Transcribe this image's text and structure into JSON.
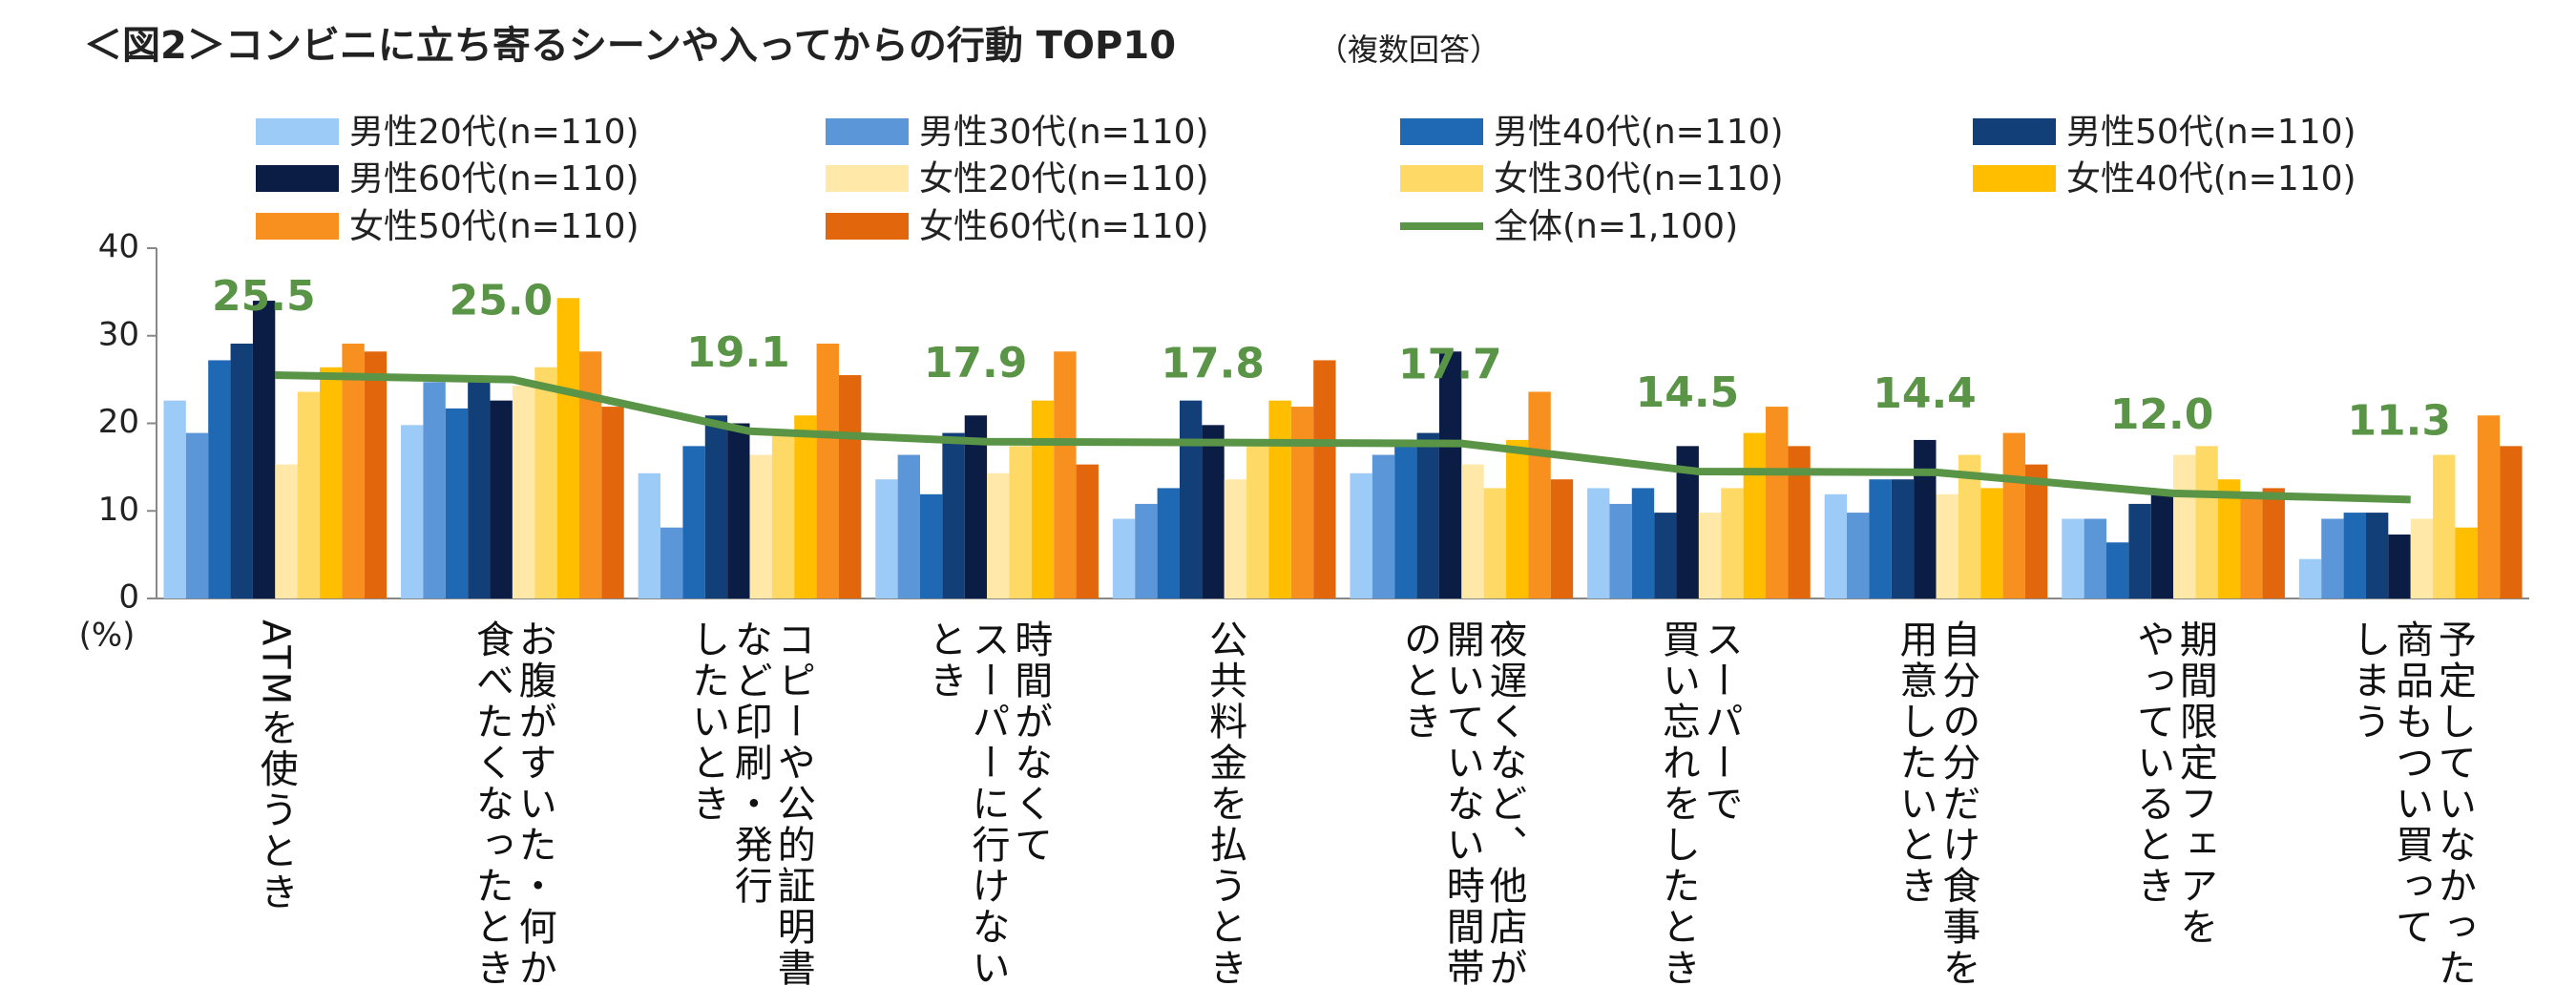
{
  "chart_data": {
    "type": "bar",
    "title": "＜図2＞コンビニに立ち寄るシーンや入ってからの行動 TOP10",
    "subtitle": "（複数回答）",
    "y_label": "(%)",
    "categories": [
      "ATMを使うとき",
      "お腹がすいた・何か\n食べたくなったとき",
      "コピーや公的証明書\nなど印刷・発行\nしたいとき",
      "時間がなくて\nスーパーに行けない\nとき",
      "公共料金を払うとき",
      "夜遅くなど、他店が\n開いていない時間帯\nのとき",
      "スーパーで\n買い忘れをしたとき",
      "自分の分だけ食事を\n用意したいとき",
      "期間限定フェアを\nやっているとき",
      "予定していなかった\n商品もつい買って\nしまう"
    ],
    "ylim": [
      0,
      40
    ],
    "yticks": [
      0,
      10,
      20,
      30,
      40
    ],
    "series": [
      {
        "name": "男性20代(n=110)",
        "color": "#9dcbf7",
        "values": [
          22.6,
          19.8,
          14.3,
          13.6,
          9.1,
          14.3,
          12.6,
          11.9,
          9.1,
          4.5
        ]
      },
      {
        "name": "男性30代(n=110)",
        "color": "#5b96d8",
        "values": [
          18.9,
          24.7,
          8.1,
          16.4,
          10.8,
          16.4,
          10.8,
          9.8,
          9.1,
          9.1
        ]
      },
      {
        "name": "男性40代(n=110)",
        "color": "#1f68b3",
        "values": [
          27.2,
          21.7,
          17.4,
          11.9,
          12.6,
          18.1,
          12.6,
          13.6,
          6.4,
          9.8
        ]
      },
      {
        "name": "男性50代(n=110)",
        "color": "#123f78",
        "values": [
          29.1,
          24.7,
          20.9,
          18.9,
          22.6,
          18.9,
          9.8,
          13.6,
          10.8,
          9.8
        ]
      },
      {
        "name": "男性60代(n=110)",
        "color": "#0b1c45",
        "values": [
          34.0,
          22.6,
          20.0,
          20.9,
          19.8,
          28.2,
          17.4,
          18.1,
          11.9,
          7.3
        ]
      },
      {
        "name": "女性20代(n=110)",
        "color": "#ffe8a8",
        "values": [
          15.3,
          24.3,
          16.4,
          14.3,
          13.6,
          15.3,
          9.8,
          11.9,
          16.4,
          9.1
        ]
      },
      {
        "name": "女性30代(n=110)",
        "color": "#ffd965",
        "values": [
          23.6,
          26.4,
          18.9,
          17.4,
          18.1,
          12.6,
          12.6,
          16.4,
          17.4,
          16.4
        ]
      },
      {
        "name": "女性40代(n=110)",
        "color": "#ffbf00",
        "values": [
          26.4,
          34.3,
          20.9,
          22.6,
          22.6,
          18.1,
          18.9,
          12.6,
          13.6,
          8.1
        ]
      },
      {
        "name": "女性50代(n=110)",
        "color": "#f7901e",
        "values": [
          29.1,
          28.2,
          29.1,
          28.2,
          21.9,
          23.6,
          21.9,
          18.9,
          11.9,
          20.9
        ]
      },
      {
        "name": "女性60代(n=110)",
        "color": "#e2670c",
        "values": [
          28.2,
          21.9,
          25.5,
          15.3,
          27.2,
          13.6,
          17.4,
          15.3,
          12.6,
          17.4
        ]
      },
      {
        "name": "全体(n=1,100)",
        "type": "line",
        "color": "#5a9447",
        "values": [
          25.5,
          25.0,
          19.1,
          17.9,
          17.8,
          17.7,
          14.5,
          14.4,
          12.0,
          11.3
        ],
        "value_labels": [
          "25.5",
          "25.0",
          "19.1",
          "17.9",
          "17.8",
          "17.7",
          "14.5",
          "14.4",
          "12.0",
          "11.3"
        ]
      }
    ]
  }
}
